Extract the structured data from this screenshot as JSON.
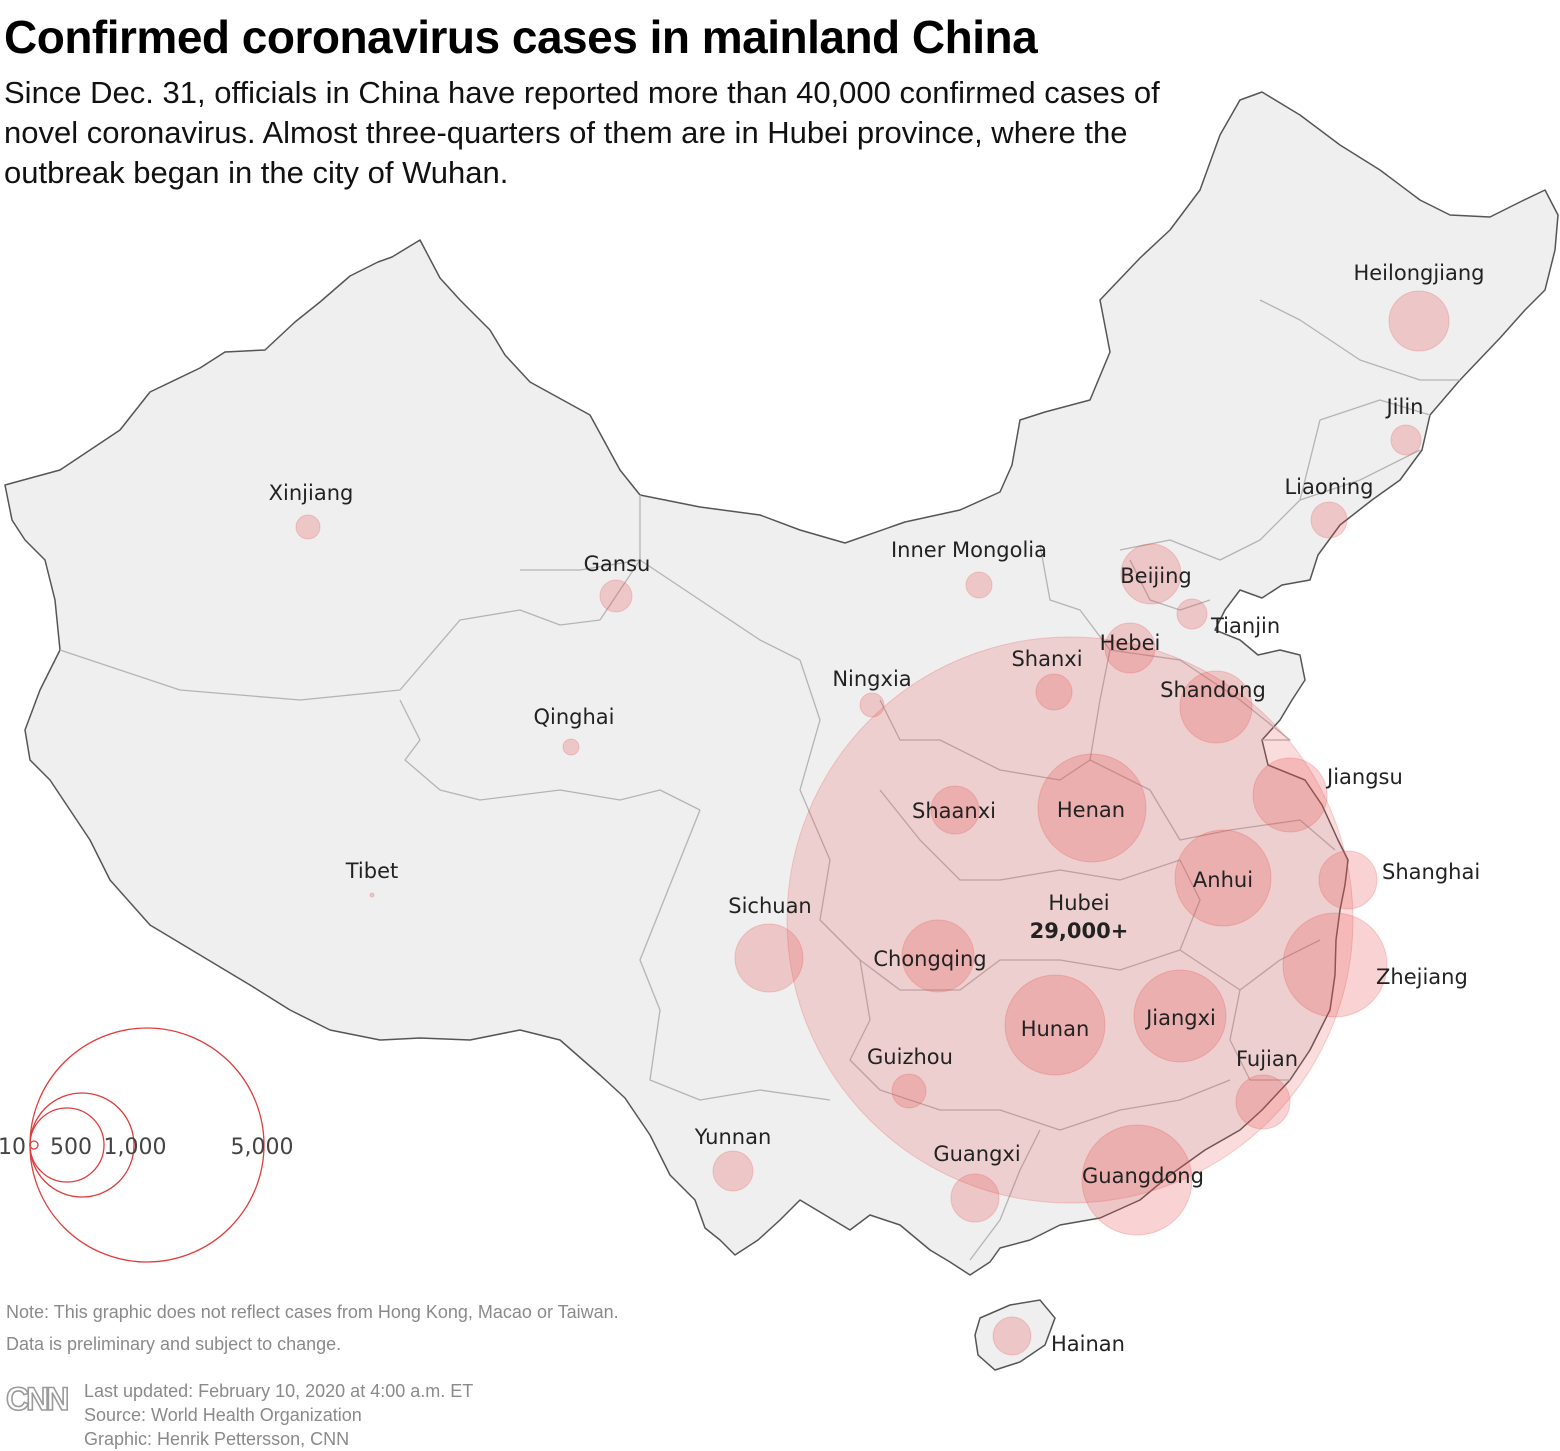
{
  "header": {
    "title": "Confirmed coronavirus cases in mainland China",
    "subtitle": "Since Dec. 31, officials in China have reported more than 40,000 confirmed cases of novel coronavirus. Almost three-quarters of them are in Hubei province, where the outbreak began in the city of Wuhan."
  },
  "colors": {
    "land": "#efefef",
    "border": "#555555",
    "province_line": "#b4b4b4",
    "bubble": "#e8504f",
    "legend_ring": "#e03c3c"
  },
  "provinces": [
    {
      "id": "heilongjiang",
      "name": "Heilongjiang"
    },
    {
      "id": "jilin",
      "name": "Jilin"
    },
    {
      "id": "liaoning",
      "name": "Liaoning"
    },
    {
      "id": "xinjiang",
      "name": "Xinjiang"
    },
    {
      "id": "gansu",
      "name": "Gansu"
    },
    {
      "id": "inner-mongolia",
      "name": "Inner Mongolia"
    },
    {
      "id": "beijing",
      "name": "Beijing"
    },
    {
      "id": "tianjin",
      "name": "Tianjin"
    },
    {
      "id": "hebei",
      "name": "Hebei"
    },
    {
      "id": "shanxi",
      "name": "Shanxi"
    },
    {
      "id": "ningxia",
      "name": "Ningxia"
    },
    {
      "id": "shandong",
      "name": "Shandong"
    },
    {
      "id": "qinghai",
      "name": "Qinghai"
    },
    {
      "id": "jiangsu",
      "name": "Jiangsu"
    },
    {
      "id": "shaanxi",
      "name": "Shaanxi"
    },
    {
      "id": "henan",
      "name": "Henan"
    },
    {
      "id": "tibet",
      "name": "Tibet"
    },
    {
      "id": "shanghai",
      "name": "Shanghai"
    },
    {
      "id": "anhui",
      "name": "Anhui"
    },
    {
      "id": "hubei",
      "name": "Hubei",
      "value_label": "29,000+"
    },
    {
      "id": "sichuan",
      "name": "Sichuan"
    },
    {
      "id": "chongqing",
      "name": "Chongqing"
    },
    {
      "id": "zhejiang",
      "name": "Zhejiang"
    },
    {
      "id": "hunan",
      "name": "Hunan"
    },
    {
      "id": "jiangxi",
      "name": "Jiangxi"
    },
    {
      "id": "guizhou",
      "name": "Guizhou"
    },
    {
      "id": "fujian",
      "name": "Fujian"
    },
    {
      "id": "yunnan",
      "name": "Yunnan"
    },
    {
      "id": "guangxi",
      "name": "Guangxi"
    },
    {
      "id": "guangdong",
      "name": "Guangdong"
    },
    {
      "id": "hainan",
      "name": "Hainan"
    }
  ],
  "legend": [
    {
      "value": 10,
      "label": "10"
    },
    {
      "value": 500,
      "label": "500"
    },
    {
      "value": 1000,
      "label": "1,000"
    },
    {
      "value": 5000,
      "label": "5,000"
    }
  ],
  "footer": {
    "note_1": "Note: This graphic does not reflect cases from Hong Kong, Macao or Taiwan.",
    "note_2": "Data is preliminary and subject to change.",
    "logo_text": "CNN",
    "updated": "Last updated: February 10, 2020 at 4:00 a.m. ET",
    "source": "Source: World Health Organization",
    "credit": "Graphic: Henrik Pettersson, CNN"
  }
}
